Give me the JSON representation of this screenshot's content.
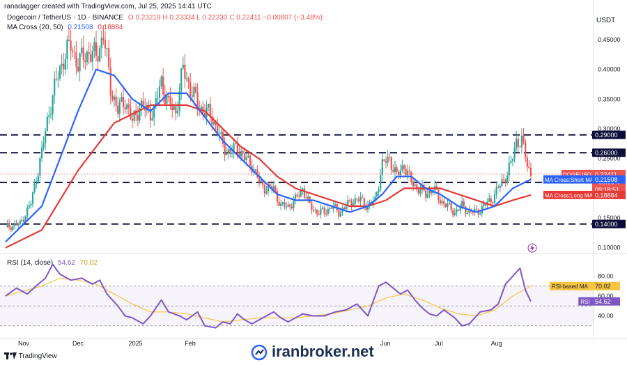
{
  "header": {
    "credit": "ranadagger created with TradingView.com, Jul 25, 2025 14:41 UTC",
    "symbol": "Dogecoin / TetherUS · 1D · BINANCE",
    "ohlc": "O 0.23219  H 0.23334  L 0.22230  C 0.22411  −0.00807 (−3.48%)",
    "ma_label": "MA Cross (20, 50)",
    "ma_short_val": "0.21508",
    "ma_long_val": "0.18884",
    "rsi_label": "RSI (14, close)",
    "rsi_val": "54.62",
    "rsi_ma_val": "70.02"
  },
  "currency": "USDT",
  "footer": {
    "brand": "TradingView",
    "watermark": "iranbroker.net"
  },
  "colors": {
    "up": "#26a69a",
    "down": "#ef5350",
    "short_ma": "#2962ff",
    "long_ma": "#e53935",
    "rsi": "#7e57c2",
    "rsi_ma": "#f5c542",
    "level": "#0c0e3a"
  },
  "chart_data": [
    {
      "type": "candlestick",
      "title": "Dogecoin / TetherUS · 1D · BINANCE",
      "x_ticks": [
        "Nov",
        "Dec",
        "2025",
        "Feb",
        "Jun",
        "Jul",
        "Aug"
      ],
      "y_ticks": [
        "0.45000",
        "0.40000",
        "0.35000",
        "0.30000",
        "0.25000",
        "0.15000",
        "0.10000"
      ],
      "ylim": [
        0.095,
        0.47
      ],
      "levels": [
        0.29,
        0.26,
        0.21,
        0.14
      ],
      "level_labels": [
        "0.29000",
        "0.26000",
        "0.21000",
        "0.14000"
      ],
      "price_label": {
        "name": "DOGEUSDT",
        "value": "0.22411",
        "change": "−55.55%",
        "countdown": "09:18:51"
      },
      "ma_tags": [
        {
          "name": "MA Cross:Short MA",
          "value": "0.21508"
        },
        {
          "name": "MA Cross:Long MA",
          "value": "0.18884"
        }
      ],
      "close_path": [
        [
          0,
          0.135
        ],
        [
          8,
          0.14
        ],
        [
          14,
          0.175
        ],
        [
          20,
          0.26
        ],
        [
          24,
          0.33
        ],
        [
          28,
          0.38
        ],
        [
          32,
          0.42
        ],
        [
          36,
          0.44
        ],
        [
          40,
          0.41
        ],
        [
          46,
          0.43
        ],
        [
          50,
          0.42
        ],
        [
          54,
          0.46
        ],
        [
          58,
          0.37
        ],
        [
          62,
          0.33
        ],
        [
          66,
          0.35
        ],
        [
          70,
          0.31
        ],
        [
          74,
          0.34
        ],
        [
          78,
          0.33
        ],
        [
          82,
          0.33
        ],
        [
          86,
          0.38
        ],
        [
          90,
          0.34
        ],
        [
          94,
          0.33
        ],
        [
          98,
          0.4
        ],
        [
          102,
          0.37
        ],
        [
          106,
          0.34
        ],
        [
          110,
          0.33
        ],
        [
          114,
          0.32
        ],
        [
          118,
          0.29
        ],
        [
          120,
          0.27
        ],
        [
          124,
          0.26
        ],
        [
          128,
          0.27
        ],
        [
          132,
          0.25
        ],
        [
          136,
          0.24
        ],
        [
          140,
          0.21
        ],
        [
          144,
          0.2
        ],
        [
          148,
          0.2
        ],
        [
          152,
          0.17
        ],
        [
          156,
          0.17
        ],
        [
          160,
          0.18
        ],
        [
          164,
          0.2
        ],
        [
          168,
          0.17
        ],
        [
          172,
          0.16
        ],
        [
          176,
          0.16
        ],
        [
          180,
          0.17
        ],
        [
          184,
          0.16
        ],
        [
          188,
          0.17
        ],
        [
          192,
          0.18
        ],
        [
          196,
          0.18
        ],
        [
          200,
          0.17
        ],
        [
          204,
          0.18
        ],
        [
          208,
          0.24
        ],
        [
          212,
          0.25
        ],
        [
          216,
          0.22
        ],
        [
          220,
          0.24
        ],
        [
          224,
          0.21
        ],
        [
          228,
          0.2
        ],
        [
          232,
          0.19
        ],
        [
          236,
          0.2
        ],
        [
          240,
          0.18
        ],
        [
          244,
          0.17
        ],
        [
          248,
          0.16
        ],
        [
          252,
          0.17
        ],
        [
          256,
          0.16
        ],
        [
          260,
          0.16
        ],
        [
          264,
          0.17
        ],
        [
          268,
          0.18
        ],
        [
          272,
          0.2
        ],
        [
          276,
          0.22
        ],
        [
          279,
          0.24
        ],
        [
          282,
          0.28
        ],
        [
          285,
          0.28
        ],
        [
          288,
          0.24
        ],
        [
          290,
          0.224
        ]
      ],
      "ma_short_path": [
        [
          0,
          0.11
        ],
        [
          20,
          0.17
        ],
        [
          40,
          0.33
        ],
        [
          50,
          0.4
        ],
        [
          60,
          0.39
        ],
        [
          70,
          0.35
        ],
        [
          80,
          0.33
        ],
        [
          90,
          0.36
        ],
        [
          100,
          0.36
        ],
        [
          110,
          0.32
        ],
        [
          120,
          0.28
        ],
        [
          130,
          0.25
        ],
        [
          140,
          0.22
        ],
        [
          150,
          0.19
        ],
        [
          160,
          0.18
        ],
        [
          170,
          0.18
        ],
        [
          180,
          0.17
        ],
        [
          190,
          0.16
        ],
        [
          200,
          0.17
        ],
        [
          208,
          0.19
        ],
        [
          216,
          0.22
        ],
        [
          224,
          0.22
        ],
        [
          232,
          0.2
        ],
        [
          240,
          0.19
        ],
        [
          250,
          0.17
        ],
        [
          260,
          0.16
        ],
        [
          270,
          0.17
        ],
        [
          280,
          0.2
        ],
        [
          290,
          0.21508
        ]
      ],
      "ma_long_path": [
        [
          0,
          0.1
        ],
        [
          20,
          0.13
        ],
        [
          40,
          0.23
        ],
        [
          60,
          0.31
        ],
        [
          80,
          0.34
        ],
        [
          90,
          0.34
        ],
        [
          100,
          0.34
        ],
        [
          110,
          0.33
        ],
        [
          120,
          0.3
        ],
        [
          130,
          0.27
        ],
        [
          140,
          0.25
        ],
        [
          150,
          0.22
        ],
        [
          160,
          0.2
        ],
        [
          170,
          0.19
        ],
        [
          180,
          0.18
        ],
        [
          190,
          0.17
        ],
        [
          200,
          0.17
        ],
        [
          210,
          0.18
        ],
        [
          220,
          0.2
        ],
        [
          230,
          0.2
        ],
        [
          240,
          0.2
        ],
        [
          250,
          0.19
        ],
        [
          260,
          0.18
        ],
        [
          270,
          0.17
        ],
        [
          280,
          0.18
        ],
        [
          290,
          0.18884
        ]
      ]
    },
    {
      "type": "line",
      "title": "RSI (14, close)",
      "y_ticks": [
        "80.00",
        "60.00",
        "40.00"
      ],
      "ylim": [
        20,
        100
      ],
      "bands": [
        70,
        50,
        30
      ],
      "series": [
        {
          "name": "RSI",
          "values_path": [
            [
              0,
              60
            ],
            [
              6,
              68
            ],
            [
              12,
              62
            ],
            [
              18,
              72
            ],
            [
              22,
              78
            ],
            [
              26,
              92
            ],
            [
              30,
              82
            ],
            [
              36,
              76
            ],
            [
              42,
              78
            ],
            [
              48,
              72
            ],
            [
              52,
              76
            ],
            [
              56,
              62
            ],
            [
              62,
              50
            ],
            [
              66,
              40
            ],
            [
              70,
              38
            ],
            [
              76,
              32
            ],
            [
              80,
              40
            ],
            [
              86,
              56
            ],
            [
              90,
              44
            ],
            [
              96,
              40
            ],
            [
              100,
              36
            ],
            [
              106,
              44
            ],
            [
              110,
              30
            ],
            [
              116,
              28
            ],
            [
              120,
              34
            ],
            [
              124,
              32
            ],
            [
              128,
              42
            ],
            [
              132,
              36
            ],
            [
              136,
              32
            ],
            [
              140,
              36
            ],
            [
              144,
              40
            ],
            [
              148,
              44
            ],
            [
              152,
              38
            ],
            [
              156,
              34
            ],
            [
              160,
              38
            ],
            [
              164,
              42
            ],
            [
              170,
              40
            ],
            [
              176,
              40
            ],
            [
              182,
              44
            ],
            [
              188,
              46
            ],
            [
              194,
              52
            ],
            [
              200,
              40
            ],
            [
              206,
              70
            ],
            [
              210,
              74
            ],
            [
              214,
              68
            ],
            [
              218,
              62
            ],
            [
              222,
              66
            ],
            [
              226,
              56
            ],
            [
              230,
              48
            ],
            [
              234,
              42
            ],
            [
              238,
              40
            ],
            [
              242,
              46
            ],
            [
              248,
              38
            ],
            [
              252,
              30
            ],
            [
              256,
              32
            ],
            [
              262,
              44
            ],
            [
              268,
              46
            ],
            [
              272,
              52
            ],
            [
              276,
              72
            ],
            [
              280,
              80
            ],
            [
              284,
              88
            ],
            [
              287,
              66
            ],
            [
              290,
              54.62
            ]
          ]
        },
        {
          "name": "RSI-based MA",
          "values_path": [
            [
              0,
              60
            ],
            [
              20,
              70
            ],
            [
              30,
              78
            ],
            [
              40,
              76
            ],
            [
              50,
              72
            ],
            [
              60,
              62
            ],
            [
              70,
              52
            ],
            [
              80,
              44
            ],
            [
              90,
              44
            ],
            [
              100,
              42
            ],
            [
              110,
              38
            ],
            [
              120,
              34
            ],
            [
              130,
              36
            ],
            [
              140,
              38
            ],
            [
              150,
              38
            ],
            [
              160,
              38
            ],
            [
              170,
              40
            ],
            [
              180,
              42
            ],
            [
              190,
              46
            ],
            [
              200,
              50
            ],
            [
              210,
              58
            ],
            [
              220,
              62
            ],
            [
              230,
              56
            ],
            [
              240,
              48
            ],
            [
              250,
              42
            ],
            [
              260,
              40
            ],
            [
              270,
              46
            ],
            [
              280,
              60
            ],
            [
              290,
              70.02
            ]
          ]
        }
      ],
      "tags": [
        {
          "name": "RSI-based MA",
          "value": "70.02"
        },
        {
          "name": "RSI",
          "value": "54.62"
        }
      ]
    }
  ]
}
